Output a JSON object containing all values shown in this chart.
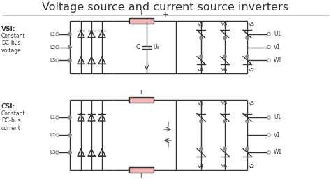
{
  "title": "Voltage source and current source inverters",
  "title_fontsize": 11.5,
  "bg_color": "#ffffff",
  "line_color": "#333333",
  "rect_color": "#f5b8b8",
  "rect_edge": "#333333",
  "dot_color": "#888888",
  "label_color": "#333333",
  "vsi_label": "VSI:",
  "vsi_sub": "Constant\nDC-bus\nvoltage",
  "csi_label": "CSI:",
  "csi_sub": "Constant\nDC-bus\ncurrent",
  "sep_color": "#cccccc"
}
